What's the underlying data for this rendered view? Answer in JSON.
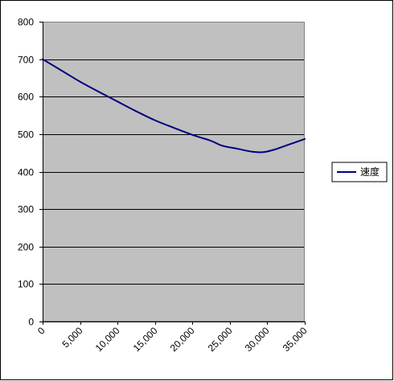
{
  "chart_data": {
    "type": "line",
    "title": "",
    "xlabel": "",
    "ylabel": "",
    "xlim": [
      0,
      35000
    ],
    "ylim": [
      0,
      800
    ],
    "x_ticks": [
      0,
      5000,
      10000,
      15000,
      20000,
      25000,
      30000,
      35000
    ],
    "x_tick_labels": [
      "0",
      "5,000",
      "10,000",
      "15,000",
      "20,000",
      "25,000",
      "30,000",
      "35,000"
    ],
    "y_ticks": [
      0,
      100,
      200,
      300,
      400,
      500,
      600,
      700,
      800
    ],
    "y_tick_labels": [
      "0",
      "100",
      "200",
      "300",
      "400",
      "500",
      "600",
      "700",
      "800"
    ],
    "grid": "horizontal",
    "legend_position": "right",
    "series": [
      {
        "name": "速度",
        "x": [
          0,
          2500,
          5000,
          7500,
          10000,
          12500,
          15000,
          17500,
          20000,
          22500,
          24000,
          26000,
          28000,
          29500,
          31000,
          33000,
          35000
        ],
        "y": [
          700,
          670,
          640,
          613,
          587,
          561,
          537,
          517,
          498,
          482,
          469,
          461,
          453,
          452,
          459,
          473,
          487
        ]
      }
    ],
    "colors": {
      "plot_background": "#c0c0c0",
      "gridline": "#000000",
      "series_line": "#000080",
      "outer_border": "#000000"
    }
  }
}
